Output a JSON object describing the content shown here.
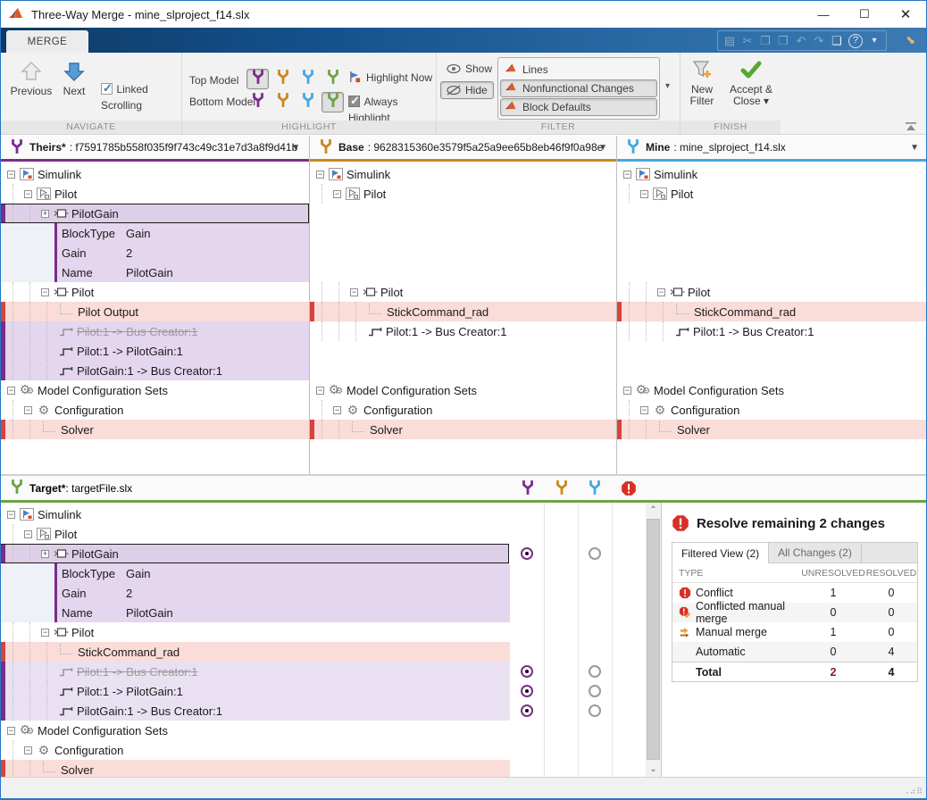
{
  "window": {
    "title": "Three-Way Merge - mine_slproject_f14.slx"
  },
  "colors": {
    "theirs": "#7b2d8b",
    "base": "#c8881e",
    "mine": "#45a7e0",
    "target": "#6fa243",
    "conflict": "#d93025",
    "selected_bg": "#decfe8",
    "prop_bg": "#e4d6ee",
    "lavender": "#e9e1f2",
    "pink": "#fadcd9",
    "red_bar": "#d6443a",
    "purple_bar": "#7b2d8b"
  },
  "ribbon": {
    "tab_label": "MERGE",
    "navigate": {
      "section": "NAVIGATE",
      "previous": "Previous",
      "next": "Next",
      "linked_scrolling": "Linked Scrolling"
    },
    "highlight": {
      "section": "HIGHLIGHT",
      "top_model": "Top Model",
      "bottom_model": "Bottom Model",
      "highlight_now": "Highlight Now",
      "always_highlight": "Always Highlight"
    },
    "filter": {
      "section": "FILTER",
      "show": "Show",
      "hide": "Hide",
      "items": [
        "Lines",
        "Nonfunctional Changes",
        "Block Defaults"
      ],
      "items_pressed": [
        false,
        true,
        true
      ]
    },
    "finish": {
      "section": "FINISH",
      "new_filter": "New Filter",
      "accept_close": "Accept & Close ▾"
    },
    "quick_toolbar_icons": [
      "save",
      "cut",
      "copy",
      "paste",
      "undo",
      "redo",
      "window-layout",
      "help",
      "more"
    ]
  },
  "panes": {
    "theirs": {
      "label": "Theirs*",
      "sep": " : ",
      "id": "f7591785b558f035f9f743c49c31e7d3a8f9d41b"
    },
    "base": {
      "label": "Base",
      "sep": " : ",
      "id": "9628315360e3579f5a25a9ee65b8eb46f9f0a98e"
    },
    "mine": {
      "label": "Mine",
      "sep": " : ",
      "id": "mine_slproject_f14.slx"
    },
    "target": {
      "label": "Target*",
      "sep": " : ",
      "id": "targetFile.slx"
    }
  },
  "trees": {
    "theirs": [
      {
        "label": "Simulink",
        "indent": 0,
        "icon": "model",
        "expand": "minus"
      },
      {
        "label": "Pilot",
        "indent": 1,
        "icon": "subsystem",
        "expand": "minus"
      },
      {
        "label": "PilotGain",
        "indent": 2,
        "icon": "block",
        "expand": "plus",
        "selected": true,
        "leftbar": "purple"
      },
      {
        "prop": [
          "BlockType",
          "Gain"
        ]
      },
      {
        "prop": [
          "Gain",
          "2"
        ]
      },
      {
        "prop": [
          "Name",
          "PilotGain"
        ]
      },
      {
        "label": "Pilot",
        "indent": 2,
        "icon": "block",
        "expand": "minus"
      },
      {
        "label": "Pilot Output",
        "indent": 3,
        "icon": "none",
        "bg": "pink",
        "leftbar": "red"
      },
      {
        "label": "Pilot:1 -> Bus Creator:1",
        "indent": 3,
        "icon": "signal",
        "bg": "purple",
        "strike": true,
        "leftbar": "purplebar"
      },
      {
        "label": "Pilot:1 -> PilotGain:1",
        "indent": 3,
        "icon": "signal",
        "bg": "purple",
        "leftbar": "purplebar"
      },
      {
        "label": "PilotGain:1 -> Bus Creator:1",
        "indent": 3,
        "icon": "signal",
        "bg": "purple",
        "leftbar": "purplebar"
      },
      {
        "label": "Model Configuration Sets",
        "indent": 0,
        "icon": "gears",
        "expand": "minus"
      },
      {
        "label": "Configuration",
        "indent": 1,
        "icon": "gear",
        "expand": "minus"
      },
      {
        "label": "Solver",
        "indent": 2,
        "icon": "none",
        "bg": "pink",
        "leftbar": "red"
      }
    ],
    "base": [
      {
        "label": "Simulink",
        "indent": 0,
        "icon": "model",
        "expand": "minus"
      },
      {
        "label": "Pilot",
        "indent": 1,
        "icon": "subsystem",
        "expand": "minus"
      },
      {
        "spacer": true
      },
      {
        "spacer": true
      },
      {
        "spacer": true
      },
      {
        "spacer": true
      },
      {
        "label": "Pilot",
        "indent": 2,
        "icon": "block",
        "expand": "minus"
      },
      {
        "label": "StickCommand_rad",
        "indent": 3,
        "icon": "none",
        "bg": "pink",
        "leftbar": "red"
      },
      {
        "label": "Pilot:1 -> Bus Creator:1",
        "indent": 3,
        "icon": "signal"
      },
      {
        "spacer": true
      },
      {
        "spacer": true
      },
      {
        "label": "Model Configuration Sets",
        "indent": 0,
        "icon": "gears",
        "expand": "minus"
      },
      {
        "label": "Configuration",
        "indent": 1,
        "icon": "gear",
        "expand": "minus"
      },
      {
        "label": "Solver",
        "indent": 2,
        "icon": "none",
        "bg": "pink",
        "leftbar": "red"
      }
    ],
    "mine": [
      {
        "label": "Simulink",
        "indent": 0,
        "icon": "model",
        "expand": "minus"
      },
      {
        "label": "Pilot",
        "indent": 1,
        "icon": "subsystem",
        "expand": "minus"
      },
      {
        "spacer": true
      },
      {
        "spacer": true
      },
      {
        "spacer": true
      },
      {
        "spacer": true
      },
      {
        "label": "Pilot",
        "indent": 2,
        "icon": "block",
        "expand": "minus"
      },
      {
        "label": "StickCommand_rad",
        "indent": 3,
        "icon": "none",
        "bg": "pink",
        "leftbar": "red"
      },
      {
        "label": "Pilot:1 -> Bus Creator:1",
        "indent": 3,
        "icon": "signal"
      },
      {
        "spacer": true
      },
      {
        "spacer": true
      },
      {
        "label": "Model Configuration Sets",
        "indent": 0,
        "icon": "gears",
        "expand": "minus"
      },
      {
        "label": "Configuration",
        "indent": 1,
        "icon": "gear",
        "expand": "minus"
      },
      {
        "label": "Solver",
        "indent": 2,
        "icon": "none",
        "bg": "pink",
        "leftbar": "red"
      }
    ],
    "target": [
      {
        "label": "Simulink",
        "indent": 0,
        "icon": "model",
        "expand": "minus"
      },
      {
        "label": "Pilot",
        "indent": 1,
        "icon": "subsystem",
        "expand": "minus"
      },
      {
        "label": "PilotGain",
        "indent": 2,
        "icon": "block",
        "expand": "plus",
        "selected": true,
        "leftbar": "purple"
      },
      {
        "prop": [
          "BlockType",
          "Gain"
        ]
      },
      {
        "prop": [
          "Gain",
          "2"
        ]
      },
      {
        "prop": [
          "Name",
          "PilotGain"
        ]
      },
      {
        "label": "Pilot",
        "indent": 2,
        "icon": "block",
        "expand": "minus"
      },
      {
        "label": "StickCommand_rad",
        "indent": 3,
        "icon": "none",
        "bg": "pink",
        "leftbar": "red"
      },
      {
        "label": "Pilot:1 -> Bus Creator:1",
        "indent": 3,
        "icon": "signal",
        "bg": "lavender",
        "strike": true,
        "leftbar": "purplebar"
      },
      {
        "label": "Pilot:1 -> PilotGain:1",
        "indent": 3,
        "icon": "signal",
        "bg": "lavender",
        "leftbar": "purplebar"
      },
      {
        "label": "PilotGain:1 -> Bus Creator:1",
        "indent": 3,
        "icon": "signal",
        "bg": "lavender",
        "leftbar": "purplebar"
      },
      {
        "label": "Model Configuration Sets",
        "indent": 0,
        "icon": "gears",
        "expand": "minus"
      },
      {
        "label": "Configuration",
        "indent": 1,
        "icon": "gear",
        "expand": "minus"
      },
      {
        "label": "Solver",
        "indent": 2,
        "icon": "none",
        "bg": "pink",
        "leftbar": "red"
      }
    ]
  },
  "target_radios": [
    {
      "row": 2,
      "theirs": "selected",
      "mine": "unselected"
    },
    {
      "row": 8,
      "theirs": "selected",
      "mine": "unselected"
    },
    {
      "row": 9,
      "theirs": "selected",
      "mine": "unselected"
    },
    {
      "row": 10,
      "theirs": "selected",
      "mine": "unselected"
    }
  ],
  "resolve": {
    "title": "Resolve remaining 2 changes",
    "tabs": [
      "Filtered View (2)",
      "All Changes (2)"
    ],
    "active_tab": 0,
    "headers": [
      "TYPE",
      "UNRESOLVED",
      "RESOLVED"
    ],
    "rows": [
      {
        "type": "Conflict",
        "icon": "conflict",
        "unresolved": "1",
        "resolved": "0"
      },
      {
        "type": "Conflicted manual merge",
        "icon": "conflicted-manual-merge",
        "unresolved": "0",
        "resolved": "0",
        "shade": true
      },
      {
        "type": "Manual merge",
        "icon": "manual-merge",
        "unresolved": "1",
        "resolved": "0"
      },
      {
        "type": "Automatic",
        "icon": "",
        "unresolved": "0",
        "resolved": "4",
        "shade": true
      },
      {
        "type": "Total",
        "icon": "",
        "unresolved": "2",
        "resolved": "4",
        "total": true
      }
    ]
  }
}
